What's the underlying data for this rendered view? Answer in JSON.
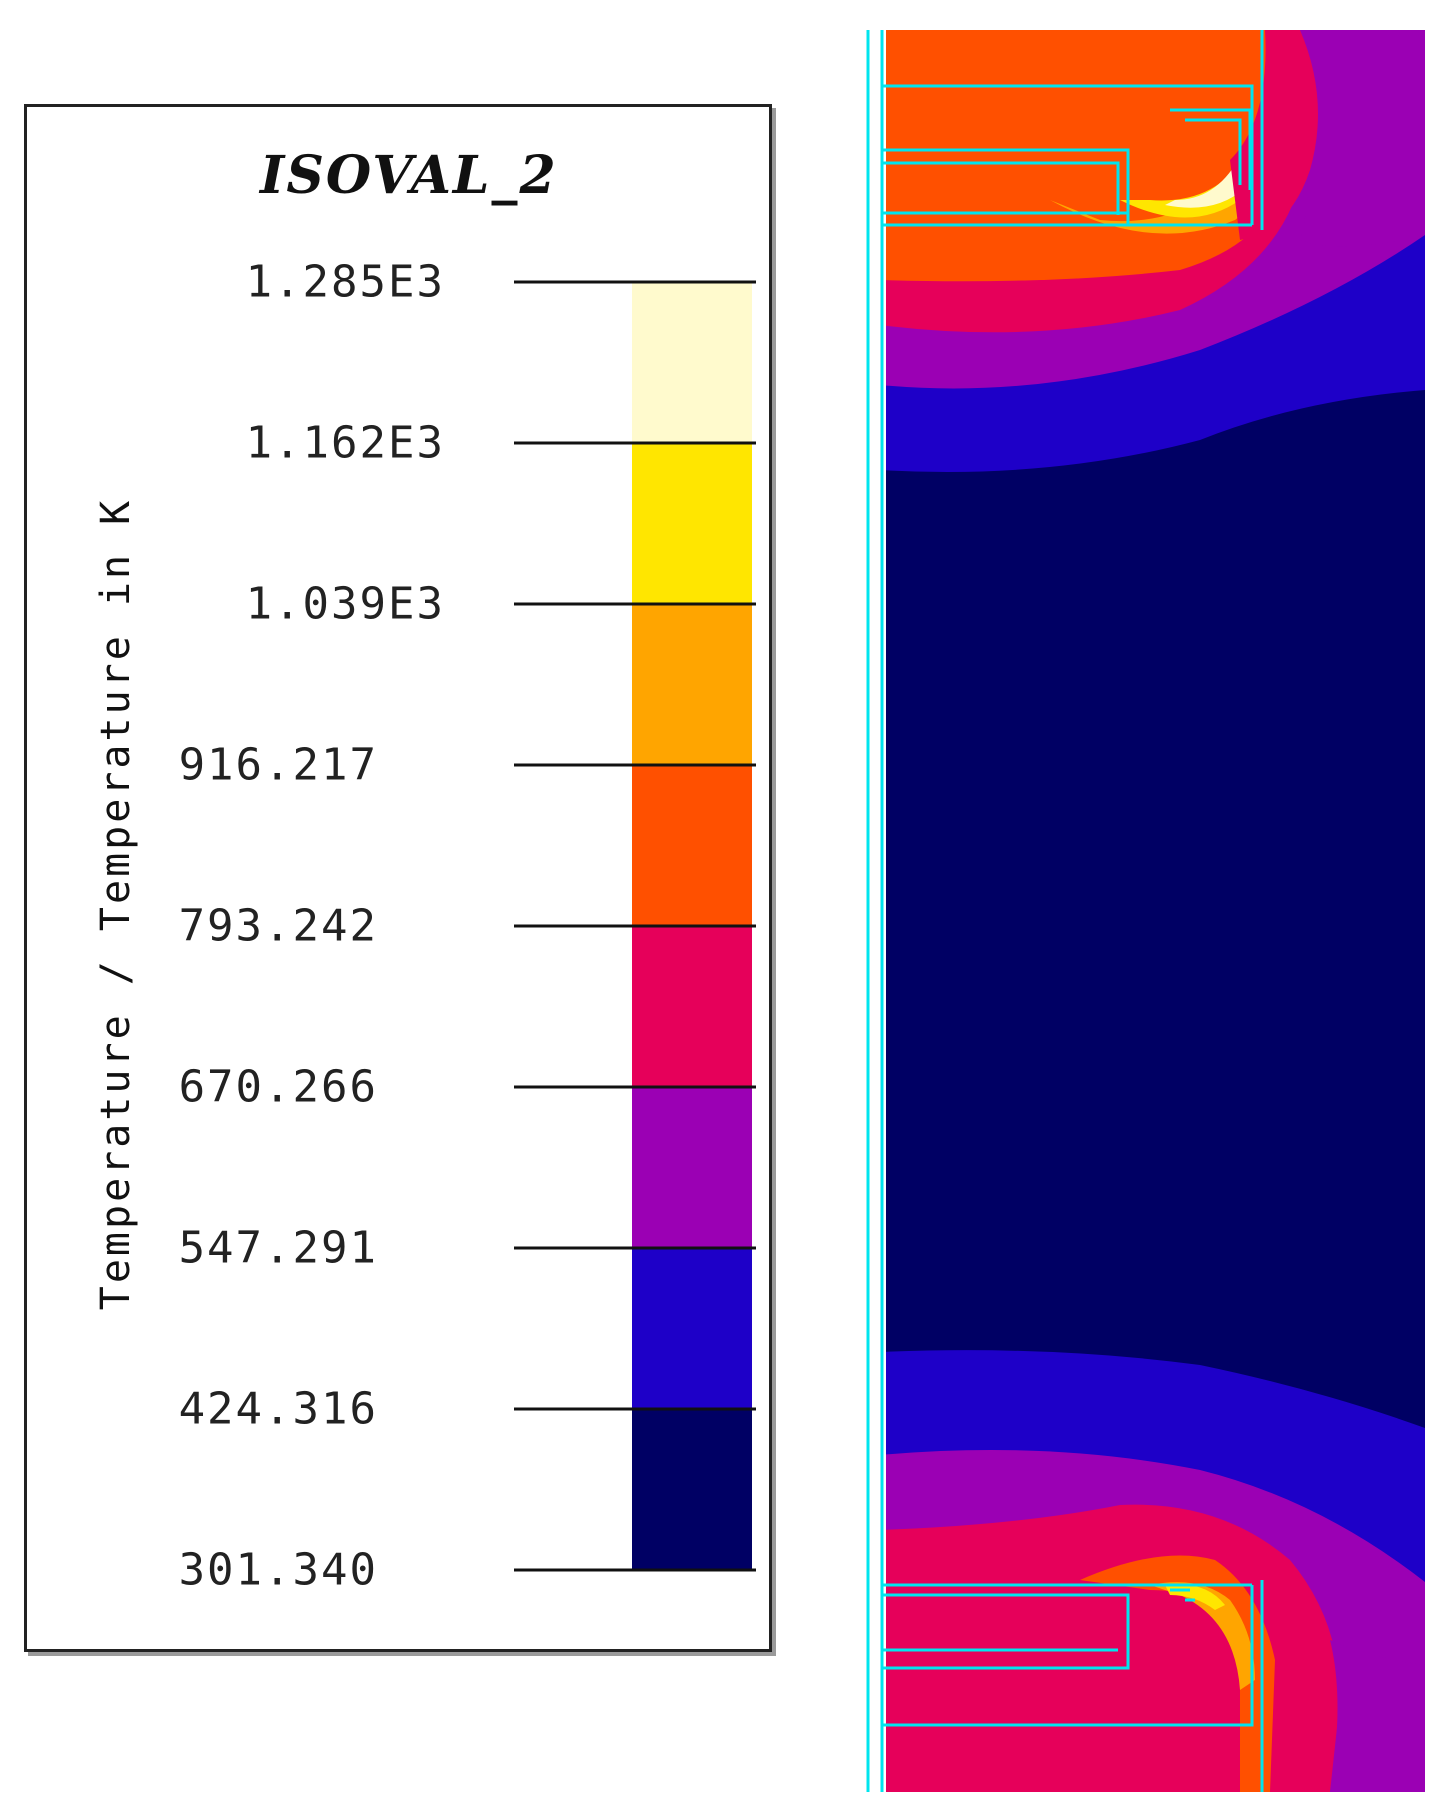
{
  "chart_data": [
    {
      "type": "heatmap",
      "title": "ISOVAL_2",
      "colorbar_label": "Temperature / Temperature in K",
      "tick_labels": [
        "1.285E3",
        "1.162E3",
        "1.039E3",
        "916.217",
        "793.242",
        "670.266",
        "547.291",
        "424.316",
        "301.340"
      ],
      "levels": [
        1285,
        1162,
        1039,
        916.217,
        793.242,
        670.266,
        547.291,
        424.316,
        301.34
      ],
      "band_colors": [
        "#FFFACD",
        "#FFE600",
        "#FFA500",
        "#FF5000",
        "#E6005A",
        "#9B00B4",
        "#1E00C8",
        "#000064"
      ],
      "geometry_line_color": "#00E5EE"
    }
  ]
}
